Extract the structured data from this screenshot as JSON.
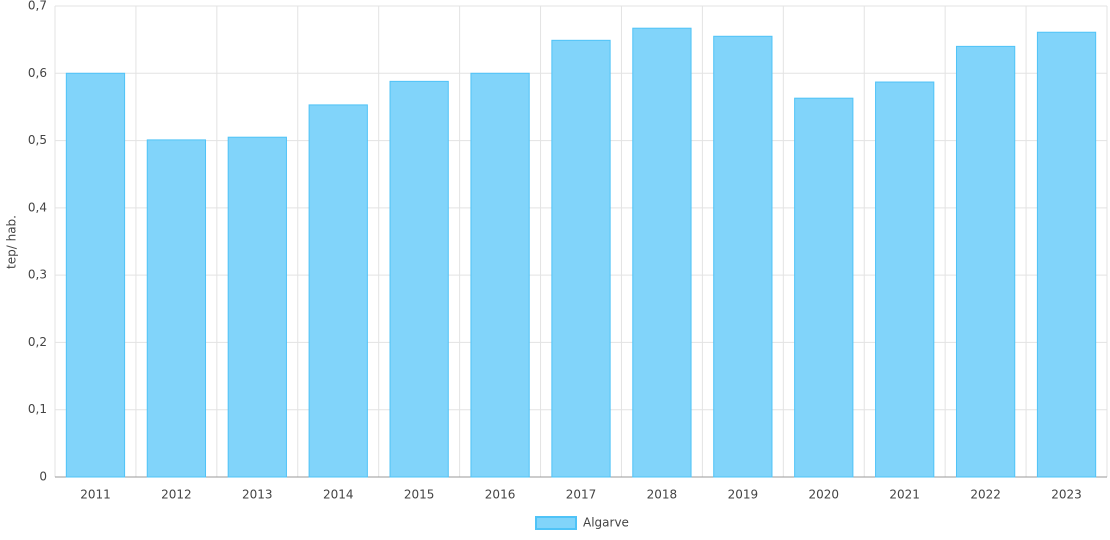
{
  "chart_data": {
    "type": "bar",
    "y_label": "tep/ hab.",
    "categories": [
      "2011",
      "2012",
      "2013",
      "2014",
      "2015",
      "2016",
      "2017",
      "2018",
      "2019",
      "2020",
      "2021",
      "2022",
      "2023"
    ],
    "series": [
      {
        "name": "Algarve",
        "color": "#81d4fa",
        "values": [
          0.6,
          0.501,
          0.505,
          0.553,
          0.588,
          0.6,
          0.649,
          0.667,
          0.655,
          0.563,
          0.587,
          0.64,
          0.661
        ]
      }
    ],
    "ylim": [
      0,
      0.7
    ],
    "yticks": [
      0,
      {
        "value": 0.1,
        "label": "0,1"
      },
      {
        "value": 0.2,
        "label": "0,2"
      },
      {
        "value": 0.3,
        "label": "0,3"
      },
      {
        "value": 0.4,
        "label": "0,4"
      },
      {
        "value": 0.5,
        "label": "0,5"
      },
      {
        "value": 0.6,
        "label": "0,6"
      },
      {
        "value": 0.7,
        "label": "0,7"
      }
    ],
    "grid": true,
    "legend": "bottom"
  }
}
